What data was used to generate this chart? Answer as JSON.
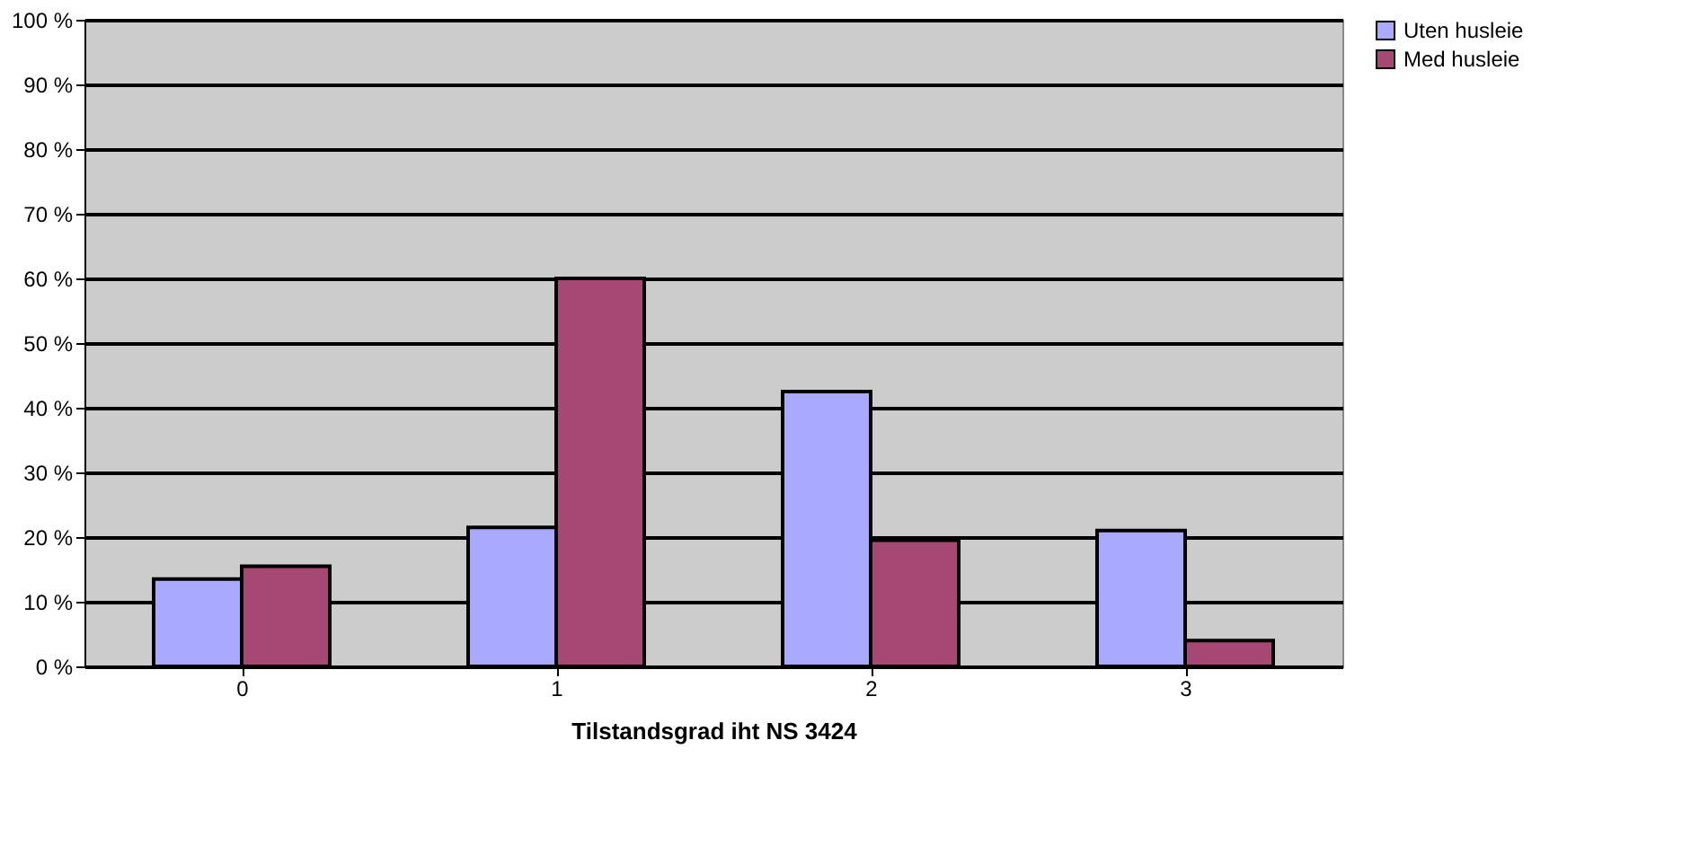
{
  "chart_data": {
    "type": "bar",
    "xlabel": "Tilstandsgrad iht NS 3424",
    "categories": [
      "0",
      "1",
      "2",
      "3"
    ],
    "series": [
      {
        "name": "Uten husleie",
        "color": "#a9a9ff",
        "values": [
          13.5,
          21.5,
          42.5,
          21
        ]
      },
      {
        "name": "Med husleie",
        "color": "#a64873",
        "values": [
          15.5,
          60,
          19.5,
          4
        ]
      }
    ],
    "ylim": [
      0,
      100
    ],
    "yticks": [
      {
        "value": 0,
        "label": "0 %"
      },
      {
        "value": 10,
        "label": "10 %"
      },
      {
        "value": 20,
        "label": "20 %"
      },
      {
        "value": 30,
        "label": "30 %"
      },
      {
        "value": 40,
        "label": "40 %"
      },
      {
        "value": 50,
        "label": "50 %"
      },
      {
        "value": 60,
        "label": "60 %"
      },
      {
        "value": 70,
        "label": "70 %"
      },
      {
        "value": 80,
        "label": "80 %"
      },
      {
        "value": 90,
        "label": "90 %"
      },
      {
        "value": 100,
        "label": "100 %"
      }
    ],
    "grid": "y",
    "legend": "right"
  }
}
